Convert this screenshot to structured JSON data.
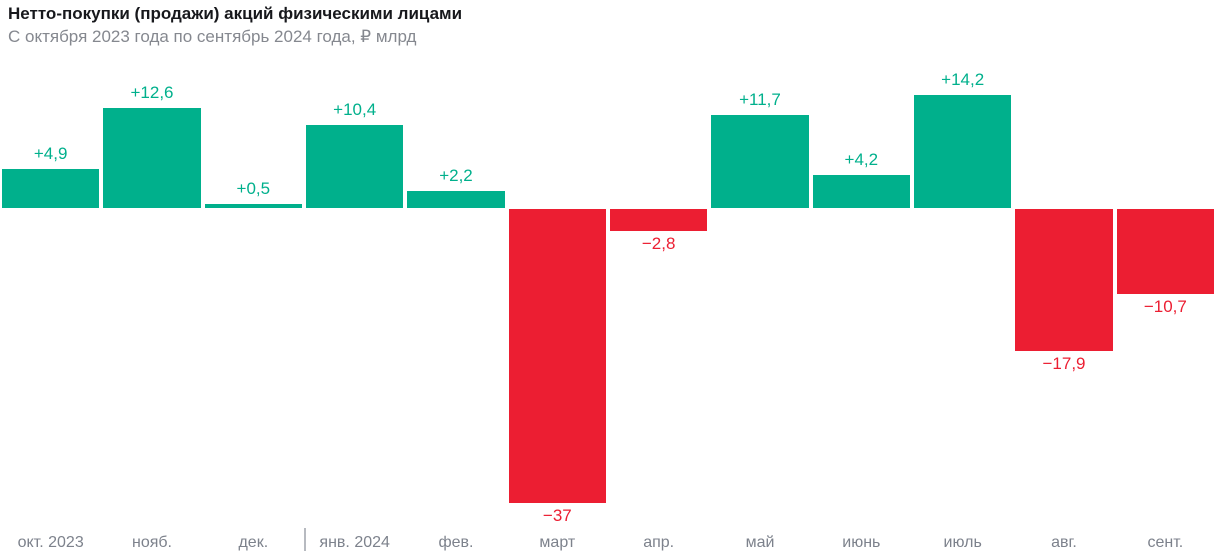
{
  "header": {
    "title": "Нетто-покупки (продажи) акций физическими лицами",
    "subtitle": "С октября 2023 года по сентябрь 2024 года, ₽ млрд"
  },
  "chart_data": {
    "type": "bar",
    "title": "Нетто-покупки (продажи) акций физическими лицами",
    "subtitle": "С октября 2023 года по сентябрь 2024 года, ₽ млрд",
    "unit": "₽ млрд",
    "categories": [
      "окт. 2023",
      "нояб.",
      "дек.",
      "янв. 2024",
      "фев.",
      "март",
      "апр.",
      "май",
      "июнь",
      "июль",
      "авг.",
      "сент."
    ],
    "category_slugs": [
      "oct-2023",
      "nov",
      "dec",
      "jan-2024",
      "feb",
      "mar",
      "apr",
      "may",
      "jun",
      "jul",
      "aug",
      "sep"
    ],
    "values": [
      4.9,
      12.6,
      0.5,
      10.4,
      2.2,
      -37,
      -2.8,
      11.7,
      4.2,
      14.2,
      -17.9,
      -10.7
    ],
    "value_labels": [
      "+4,9",
      "+12,6",
      "+0,5",
      "+10,4",
      "+2,2",
      "−37",
      "−2,8",
      "+11,7",
      "+4,2",
      "+14,2",
      "−17,9",
      "−10,7"
    ],
    "colors": {
      "positive": "#00b08c",
      "negative": "#ec1e32"
    },
    "axis": {
      "baseline_value": 0,
      "grid": false,
      "legend": false,
      "year_divider_after_index": 2
    },
    "ylim": [
      -37,
      14.2
    ]
  }
}
